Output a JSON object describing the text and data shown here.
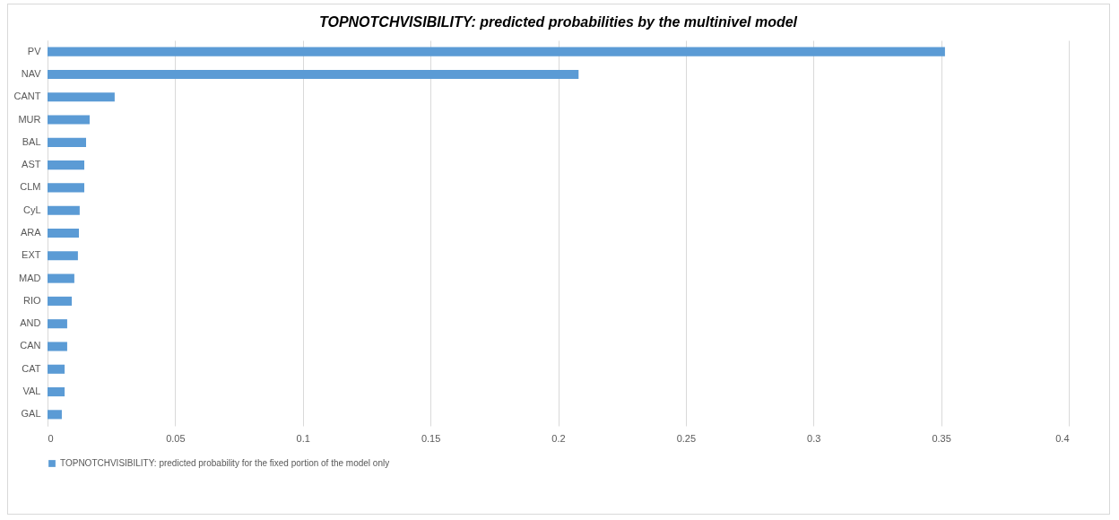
{
  "chart_data": {
    "type": "bar",
    "orientation": "horizontal",
    "title": "TOPNOTCHVISIBILITY: predicted probabilities by the multinivel model",
    "categories": [
      "PV",
      "NAV",
      "CANT",
      "MUR",
      "BAL",
      "AST",
      "CLM",
      "CyL",
      "ARA",
      "EXT",
      "MAD",
      "RIO",
      "AND",
      "CAN",
      "CAT",
      "VAL",
      "GAL"
    ],
    "series": [
      {
        "name": "TOPNOTCHVISIBILITY: predicted probability for the fixed portion of the model only",
        "color": "#5b9bd5",
        "values": [
          0.3515,
          0.208,
          0.0263,
          0.0165,
          0.0151,
          0.0144,
          0.0144,
          0.0126,
          0.0123,
          0.0119,
          0.0105,
          0.0095,
          0.0077,
          0.0077,
          0.0067,
          0.0067,
          0.0056
        ]
      }
    ],
    "xlim": [
      0,
      0.4
    ],
    "xticks": [
      0,
      0.05,
      0.1,
      0.15,
      0.2,
      0.25,
      0.3,
      0.35,
      0.4
    ],
    "grid": "x",
    "legend": "bottom"
  }
}
